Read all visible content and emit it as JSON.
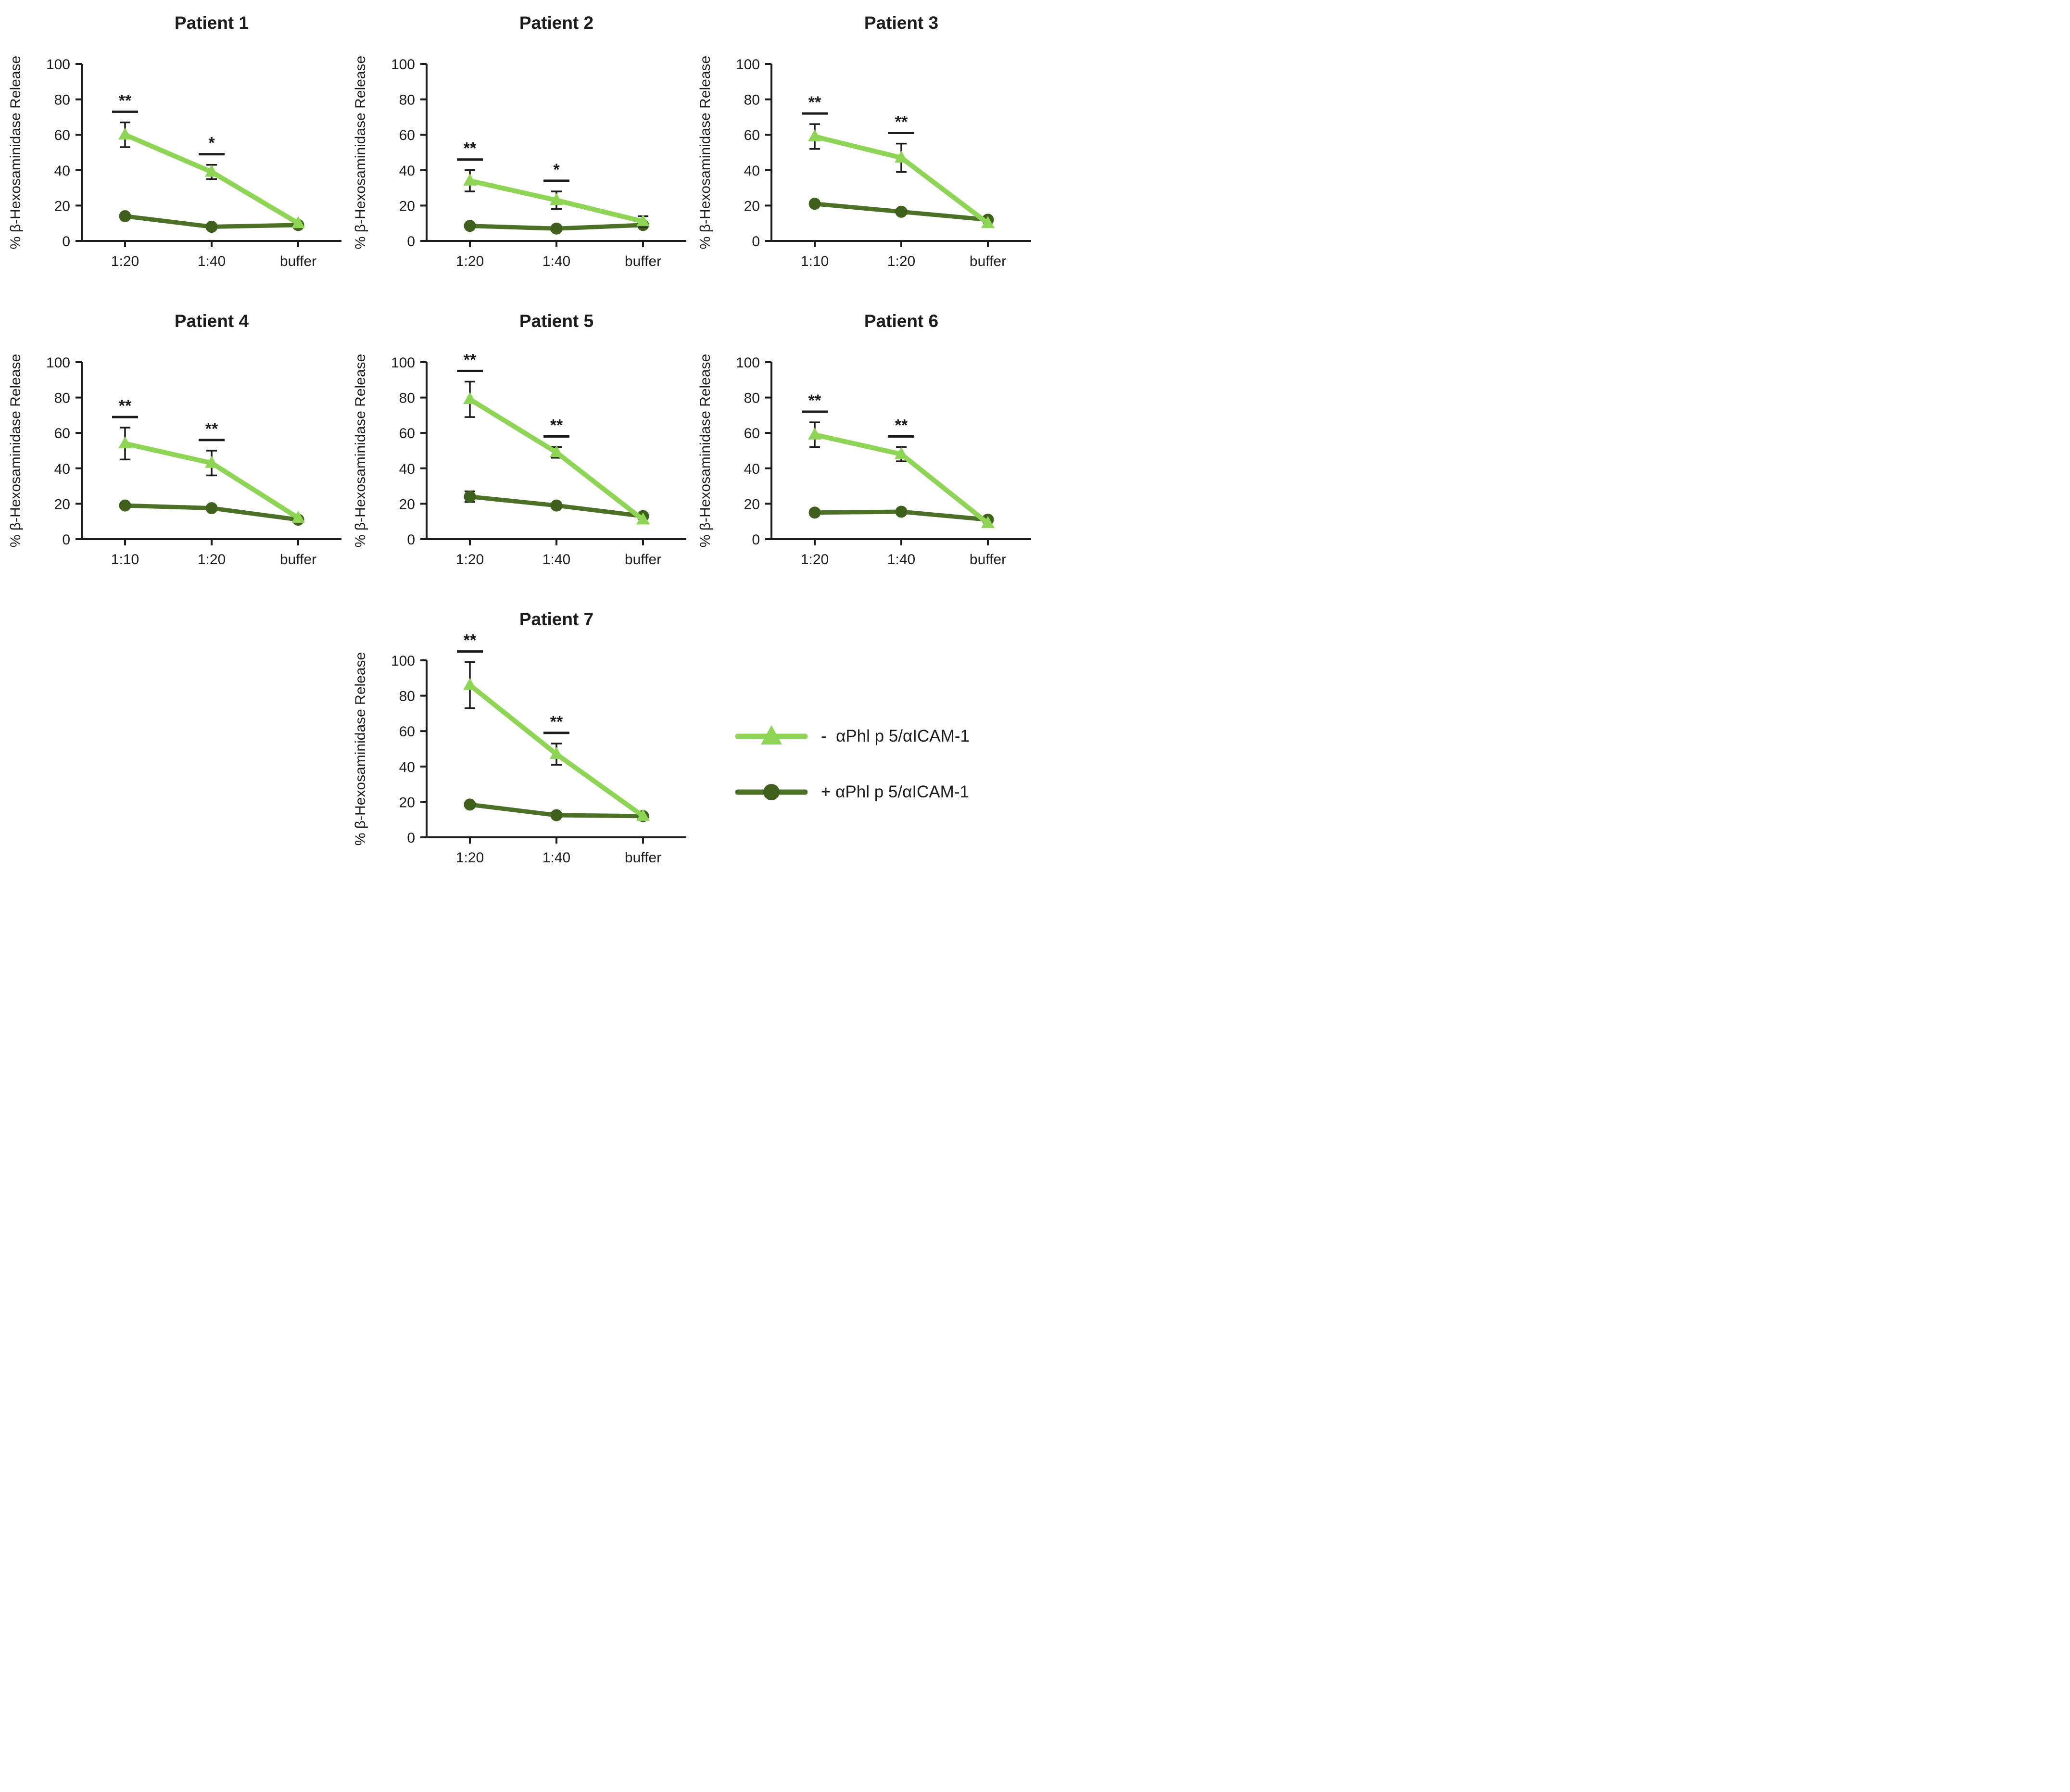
{
  "figure": {
    "background": "#ffffff",
    "ylabel": "% β-Hexosaminidase Release",
    "yticks": [
      0,
      20,
      40,
      60,
      80,
      100
    ],
    "ylim": [
      0,
      100
    ],
    "colors": {
      "series_minus_line": "#8ed455",
      "series_minus_marker": "#8ed455",
      "series_plus_line": "#4c7026",
      "series_plus_marker": "#3f601c",
      "axis": "#1c1c1c",
      "error_bar": "#1c1c1c",
      "significance": "#1c1c1c"
    },
    "series_defs": [
      {
        "name": "- αPhl p 5/αICAM-1",
        "marker": "triangle",
        "line_color": "#8ed455",
        "marker_color": "#8ed455"
      },
      {
        "name": "+ αPhl p 5/αICAM-1",
        "marker": "circle",
        "line_color": "#4c7026",
        "marker_color": "#3f601c"
      }
    ],
    "legend": [
      {
        "label": "-  αPhl p 5/αICAM-1",
        "marker": "triangle-icon"
      },
      {
        "label": "+ αPhl p 5/αICAM-1",
        "marker": "circle-icon"
      }
    ]
  },
  "chart_data": [
    {
      "type": "line",
      "title": "Patient 1",
      "categories": [
        "1:20",
        "1:40",
        "buffer"
      ],
      "ylabel": "% β-Hexosaminidase Release",
      "ylim": [
        0,
        100
      ],
      "series": [
        {
          "name": "- αPhl p 5/αICAM-1",
          "values": [
            60,
            39,
            10
          ],
          "errors": [
            7,
            4,
            0
          ]
        },
        {
          "name": "+ αPhl p 5/αICAM-1",
          "values": [
            14,
            8,
            9
          ],
          "errors": [
            0,
            0,
            0
          ]
        }
      ],
      "significance": [
        {
          "index": 0,
          "label": "**"
        },
        {
          "index": 1,
          "label": "*"
        }
      ]
    },
    {
      "type": "line",
      "title": "Patient 2",
      "categories": [
        "1:20",
        "1:40",
        "buffer"
      ],
      "ylabel": "% β-Hexosaminidase Release",
      "ylim": [
        0,
        100
      ],
      "series": [
        {
          "name": "- αPhl p 5/αICAM-1",
          "values": [
            34,
            23,
            11
          ],
          "errors": [
            6,
            5,
            3
          ]
        },
        {
          "name": "+ αPhl p 5/αICAM-1",
          "values": [
            8.5,
            7,
            9
          ],
          "errors": [
            0,
            0,
            0
          ]
        }
      ],
      "significance": [
        {
          "index": 0,
          "label": "**"
        },
        {
          "index": 1,
          "label": "*"
        }
      ]
    },
    {
      "type": "line",
      "title": "Patient 3",
      "categories": [
        "1:10",
        "1:20",
        "buffer"
      ],
      "ylabel": "% β-Hexosaminidase Release",
      "ylim": [
        0,
        100
      ],
      "series": [
        {
          "name": "- αPhl p 5/αICAM-1",
          "values": [
            59,
            47,
            10
          ],
          "errors": [
            7,
            8,
            0
          ]
        },
        {
          "name": "+ αPhl p 5/αICAM-1",
          "values": [
            21,
            16.5,
            12
          ],
          "errors": [
            0,
            0,
            0
          ]
        }
      ],
      "significance": [
        {
          "index": 0,
          "label": "**"
        },
        {
          "index": 1,
          "label": "**"
        }
      ]
    },
    {
      "type": "line",
      "title": "Patient 4",
      "categories": [
        "1:10",
        "1:20",
        "buffer"
      ],
      "ylabel": "% β-Hexosaminidase Release",
      "ylim": [
        0,
        100
      ],
      "series": [
        {
          "name": "- αPhl p 5/αICAM-1",
          "values": [
            54,
            43,
            12
          ],
          "errors": [
            9,
            7,
            0
          ]
        },
        {
          "name": "+ αPhl p 5/αICAM-1",
          "values": [
            19,
            17.5,
            11
          ],
          "errors": [
            0,
            0,
            0
          ]
        }
      ],
      "significance": [
        {
          "index": 0,
          "label": "**"
        },
        {
          "index": 1,
          "label": "**"
        }
      ]
    },
    {
      "type": "line",
      "title": "Patient 5",
      "categories": [
        "1:20",
        "1:40",
        "buffer"
      ],
      "ylabel": "% β-Hexosaminidase Release",
      "ylim": [
        0,
        100
      ],
      "series": [
        {
          "name": "- αPhl p 5/αICAM-1",
          "values": [
            79,
            49,
            11
          ],
          "errors": [
            10,
            3,
            0
          ]
        },
        {
          "name": "+ αPhl p 5/αICAM-1",
          "values": [
            24,
            19,
            13
          ],
          "errors": [
            3,
            0,
            0
          ]
        }
      ],
      "significance": [
        {
          "index": 0,
          "label": "**"
        },
        {
          "index": 1,
          "label": "**"
        }
      ]
    },
    {
      "type": "line",
      "title": "Patient 6",
      "categories": [
        "1:20",
        "1:40",
        "buffer"
      ],
      "ylabel": "% β-Hexosaminidase Release",
      "ylim": [
        0,
        100
      ],
      "series": [
        {
          "name": "- αPhl p 5/αICAM-1",
          "values": [
            59,
            48,
            9
          ],
          "errors": [
            7,
            4,
            0
          ]
        },
        {
          "name": "+ αPhl p 5/αICAM-1",
          "values": [
            15,
            15.5,
            11
          ],
          "errors": [
            0,
            0,
            0
          ]
        }
      ],
      "significance": [
        {
          "index": 0,
          "label": "**"
        },
        {
          "index": 1,
          "label": "**"
        }
      ]
    },
    {
      "type": "line",
      "title": "Patient 7",
      "categories": [
        "1:20",
        "1:40",
        "buffer"
      ],
      "ylabel": "% β-Hexosaminidase Release",
      "ylim": [
        0,
        100
      ],
      "series": [
        {
          "name": "- αPhl p 5/αICAM-1",
          "values": [
            86,
            47,
            12
          ],
          "errors": [
            13,
            6,
            0
          ]
        },
        {
          "name": "+ αPhl p 5/αICAM-1",
          "values": [
            18.5,
            12.5,
            12
          ],
          "errors": [
            0,
            0,
            0
          ]
        }
      ],
      "significance": [
        {
          "index": 0,
          "label": "**"
        },
        {
          "index": 1,
          "label": "**"
        }
      ]
    }
  ]
}
